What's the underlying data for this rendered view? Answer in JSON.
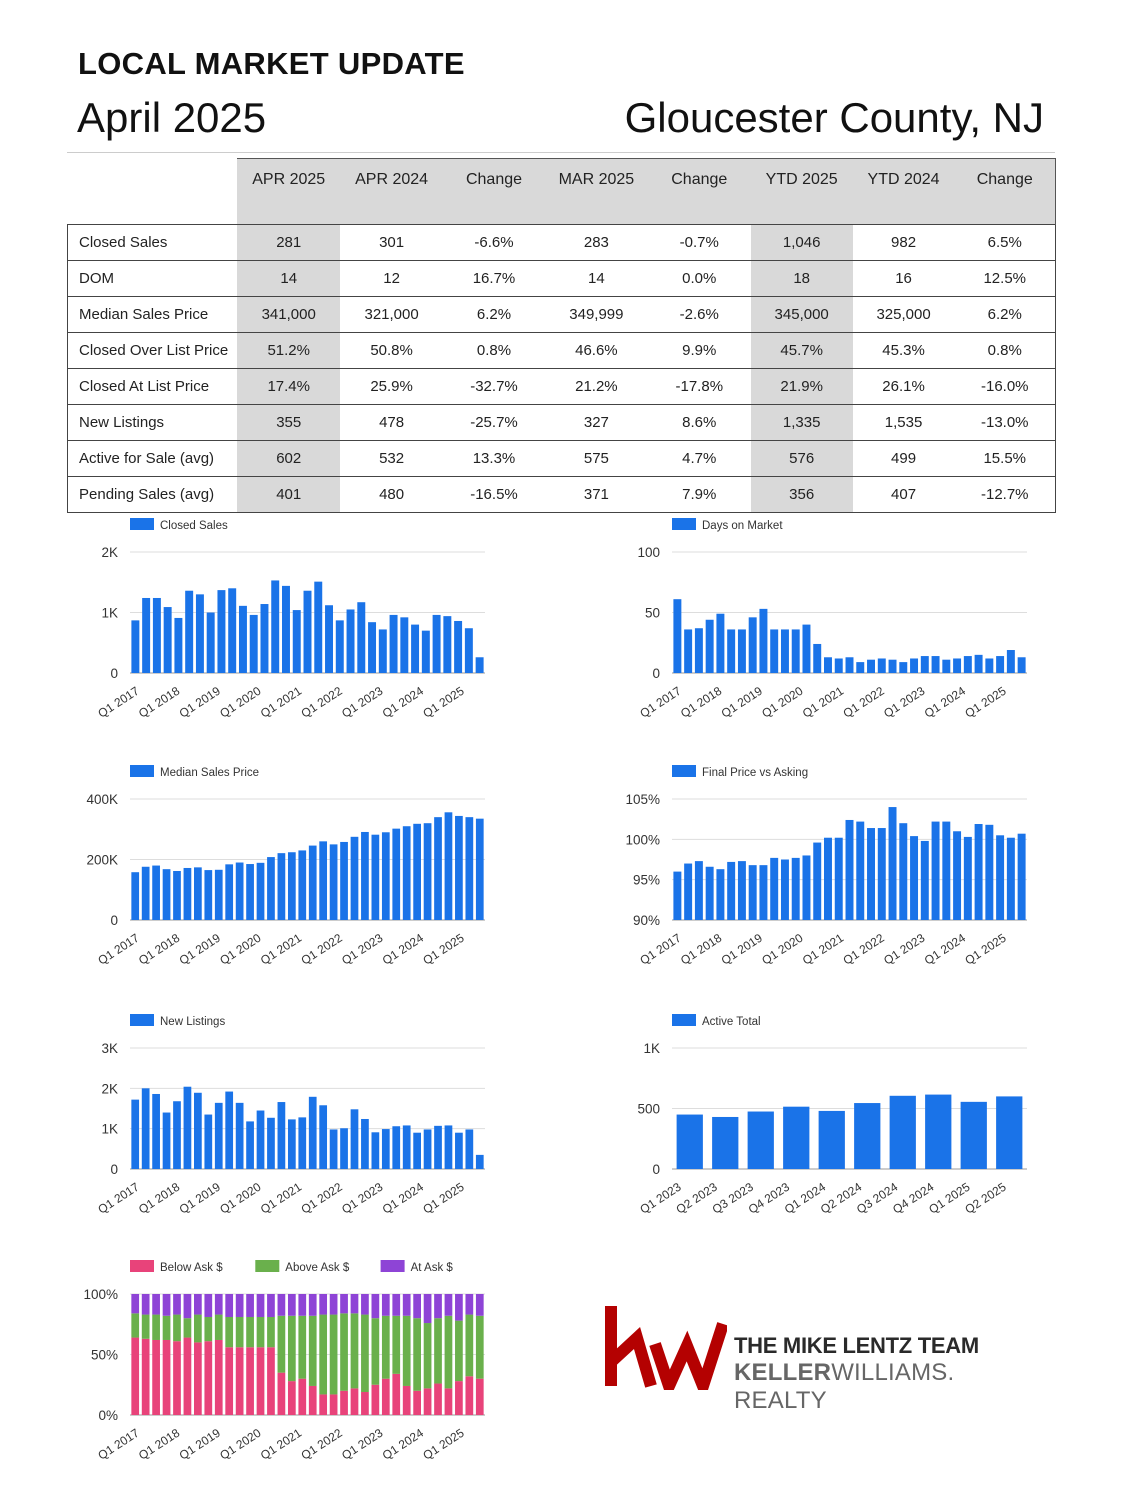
{
  "header": {
    "title": "LOCAL MARKET UPDATE",
    "date": "April 2025",
    "county": "Gloucester County, NJ"
  },
  "table": {
    "columns": [
      "APR 2025",
      "APR 2024",
      "Change",
      "MAR 2025",
      "Change",
      "YTD 2025",
      "YTD 2024",
      "Change"
    ],
    "rows": [
      {
        "label": "Closed Sales",
        "values": [
          "281",
          "301",
          "-6.6%",
          "283",
          "-0.7%",
          "1,046",
          "982",
          "6.5%"
        ],
        "dirs": [
          "neg",
          "neg",
          "pos"
        ]
      },
      {
        "label": "DOM",
        "values": [
          "14",
          "12",
          "16.7%",
          "14",
          "0.0%",
          "18",
          "16",
          "12.5%"
        ],
        "dirs": [
          "pos",
          "neu",
          "pos"
        ]
      },
      {
        "label": "Median Sales Price",
        "values": [
          "341,000",
          "321,000",
          "6.2%",
          "349,999",
          "-2.6%",
          "345,000",
          "325,000",
          "6.2%"
        ],
        "dirs": [
          "pos",
          "neg",
          "pos"
        ]
      },
      {
        "label": "Closed Over List Price",
        "values": [
          "51.2%",
          "50.8%",
          "0.8%",
          "46.6%",
          "9.9%",
          "45.7%",
          "45.3%",
          "0.8%"
        ],
        "dirs": [
          "pos",
          "neu",
          "pos"
        ]
      },
      {
        "label": "Closed At List Price",
        "values": [
          "17.4%",
          "25.9%",
          "-32.7%",
          "21.2%",
          "-17.8%",
          "21.9%",
          "26.1%",
          "-16.0%"
        ],
        "dirs": [
          "neg",
          "neg",
          "neg"
        ]
      },
      {
        "label": "New Listings",
        "values": [
          "355",
          "478",
          "-25.7%",
          "327",
          "8.6%",
          "1,335",
          "1,535",
          "-13.0%"
        ],
        "dirs": [
          "neg",
          "pos",
          "neg"
        ]
      },
      {
        "label": "Active for Sale (avg)",
        "values": [
          "602",
          "532",
          "13.3%",
          "575",
          "4.7%",
          "576",
          "499",
          "15.5%"
        ],
        "dirs": [
          "pos",
          "pos",
          "pos"
        ]
      },
      {
        "label": "Pending Sales (avg)",
        "values": [
          "401",
          "480",
          "-16.5%",
          "371",
          "7.9%",
          "356",
          "407",
          "-12.7%"
        ],
        "dirs": [
          "neg",
          "pos",
          "neg"
        ]
      }
    ]
  },
  "colors": {
    "bar": "#1a73e8",
    "below_ask": "#e8437a",
    "above_ask": "#6ab04c",
    "at_ask": "#8e44d6",
    "positive": "#43a047",
    "negative": "#e53935"
  },
  "chart_data": [
    {
      "id": "closed-sales",
      "type": "bar",
      "legend": "Closed Sales",
      "yticks": [
        "2K",
        "1K",
        "0"
      ],
      "ylim": [
        0,
        2000
      ],
      "xticks": [
        "Q1 2017",
        "Q1 2018",
        "Q1 2019",
        "Q1 2020",
        "Q1 2021",
        "Q1 2022",
        "Q1 2023",
        "Q1 2024",
        "Q1 2025"
      ],
      "values": [
        870,
        1240,
        1240,
        1090,
        910,
        1360,
        1300,
        1000,
        1370,
        1400,
        1110,
        960,
        1140,
        1530,
        1440,
        1040,
        1360,
        1510,
        1120,
        870,
        1050,
        1170,
        840,
        720,
        960,
        920,
        800,
        700,
        960,
        940,
        860,
        740,
        260
      ]
    },
    {
      "id": "days-on-market",
      "type": "bar",
      "legend": "Days on Market",
      "yticks": [
        "100",
        "50",
        "0"
      ],
      "ylim": [
        0,
        100
      ],
      "xticks": [
        "Q1 2017",
        "Q1 2018",
        "Q1 2019",
        "Q1 2020",
        "Q1 2021",
        "Q1 2022",
        "Q1 2023",
        "Q1 2024",
        "Q1 2025"
      ],
      "values": [
        61,
        36,
        37,
        44,
        49,
        36,
        36,
        46,
        53,
        36,
        36,
        36,
        40,
        24,
        13,
        12,
        13,
        9,
        11,
        12,
        11,
        9,
        12,
        14,
        14,
        11,
        12,
        14,
        15,
        12,
        14,
        19,
        13
      ]
    },
    {
      "id": "median-sales-price",
      "type": "bar",
      "legend": "Median Sales Price",
      "yticks": [
        "400K",
        "200K",
        "0"
      ],
      "ylim": [
        0,
        400000
      ],
      "xticks": [
        "Q1 2017",
        "Q1 2018",
        "Q1 2019",
        "Q1 2020",
        "Q1 2021",
        "Q1 2022",
        "Q1 2023",
        "Q1 2024",
        "Q1 2025"
      ],
      "values": [
        158000,
        176000,
        180000,
        168000,
        162000,
        172000,
        174000,
        165000,
        166000,
        184000,
        190000,
        185000,
        189000,
        208000,
        221000,
        224000,
        230000,
        246000,
        260000,
        250000,
        258000,
        275000,
        291000,
        282000,
        290000,
        302000,
        310000,
        318000,
        320000,
        340000,
        356000,
        344000,
        340000,
        335000
      ]
    },
    {
      "id": "final-price-vs-asking",
      "type": "bar",
      "legend": "Final Price vs Asking",
      "yticks": [
        "105%",
        "100%",
        "95%",
        "90%"
      ],
      "ylim": [
        90,
        105
      ],
      "xticks": [
        "Q1 2017",
        "Q1 2018",
        "Q1 2019",
        "Q1 2020",
        "Q1 2021",
        "Q1 2022",
        "Q1 2023",
        "Q1 2024",
        "Q1 2025"
      ],
      "values": [
        96.0,
        97.0,
        97.3,
        96.6,
        96.3,
        97.2,
        97.3,
        96.8,
        96.8,
        97.7,
        97.5,
        97.7,
        98.0,
        99.6,
        100.2,
        100.2,
        102.4,
        102.2,
        101.4,
        101.4,
        104.0,
        102.0,
        100.4,
        99.8,
        102.2,
        102.2,
        101.0,
        100.3,
        101.9,
        101.8,
        100.5,
        100.2,
        100.7
      ]
    },
    {
      "id": "new-listings",
      "type": "bar",
      "legend": "New Listings",
      "yticks": [
        "3K",
        "2K",
        "1K",
        "0"
      ],
      "ylim": [
        0,
        3000
      ],
      "xticks": [
        "Q1 2017",
        "Q1 2018",
        "Q1 2019",
        "Q1 2020",
        "Q1 2021",
        "Q1 2022",
        "Q1 2023",
        "Q1 2024",
        "Q1 2025"
      ],
      "values": [
        1720,
        2000,
        1860,
        1400,
        1680,
        2040,
        1890,
        1350,
        1640,
        1920,
        1640,
        1180,
        1450,
        1270,
        1660,
        1230,
        1280,
        1790,
        1580,
        980,
        1010,
        1480,
        1240,
        910,
        990,
        1060,
        1080,
        900,
        980,
        1070,
        1080,
        900,
        980,
        350
      ]
    },
    {
      "id": "active-total",
      "type": "bar",
      "legend": "Active Total",
      "yticks": [
        "1K",
        "500",
        "0"
      ],
      "ylim": [
        0,
        1000
      ],
      "xticks": [
        "Q1 2023",
        "Q2 2023",
        "Q3 2023",
        "Q4 2023",
        "Q1 2024",
        "Q2 2024",
        "Q3 2024",
        "Q4 2024",
        "Q1 2025",
        "Q2 2025"
      ],
      "values": [
        450,
        430,
        475,
        515,
        480,
        545,
        605,
        615,
        555,
        600
      ]
    },
    {
      "id": "sale-vs-ask-share",
      "type": "bar-stacked-percent",
      "legend": [
        "Below Ask $",
        "Above Ask $",
        "At Ask $"
      ],
      "yticks": [
        "100%",
        "50%",
        "0%"
      ],
      "ylim": [
        0,
        100
      ],
      "xticks": [
        "Q1 2017",
        "Q1 2018",
        "Q1 2019",
        "Q1 2020",
        "Q1 2021",
        "Q1 2022",
        "Q1 2023",
        "Q1 2024",
        "Q1 2025"
      ],
      "below": [
        64,
        63,
        62,
        62,
        61,
        64,
        60,
        61,
        62,
        56,
        56,
        56,
        56,
        56,
        35,
        28,
        30,
        24,
        17,
        17,
        20,
        22,
        19,
        25,
        30,
        34,
        24,
        20,
        22,
        26,
        22,
        28,
        32,
        30
      ],
      "above": [
        20,
        20,
        21,
        20,
        22,
        16,
        23,
        20,
        21,
        25,
        25,
        25,
        25,
        25,
        47,
        54,
        52,
        58,
        66,
        66,
        64,
        62,
        64,
        55,
        52,
        48,
        58,
        60,
        54,
        54,
        60,
        50,
        51,
        52
      ]
    }
  ],
  "logo": {
    "mark": "kw",
    "team": "THE MIKE LENTZ TEAM",
    "brand_bold": "KELLER",
    "brand_regular": "WILLIAMS. REALTY"
  }
}
